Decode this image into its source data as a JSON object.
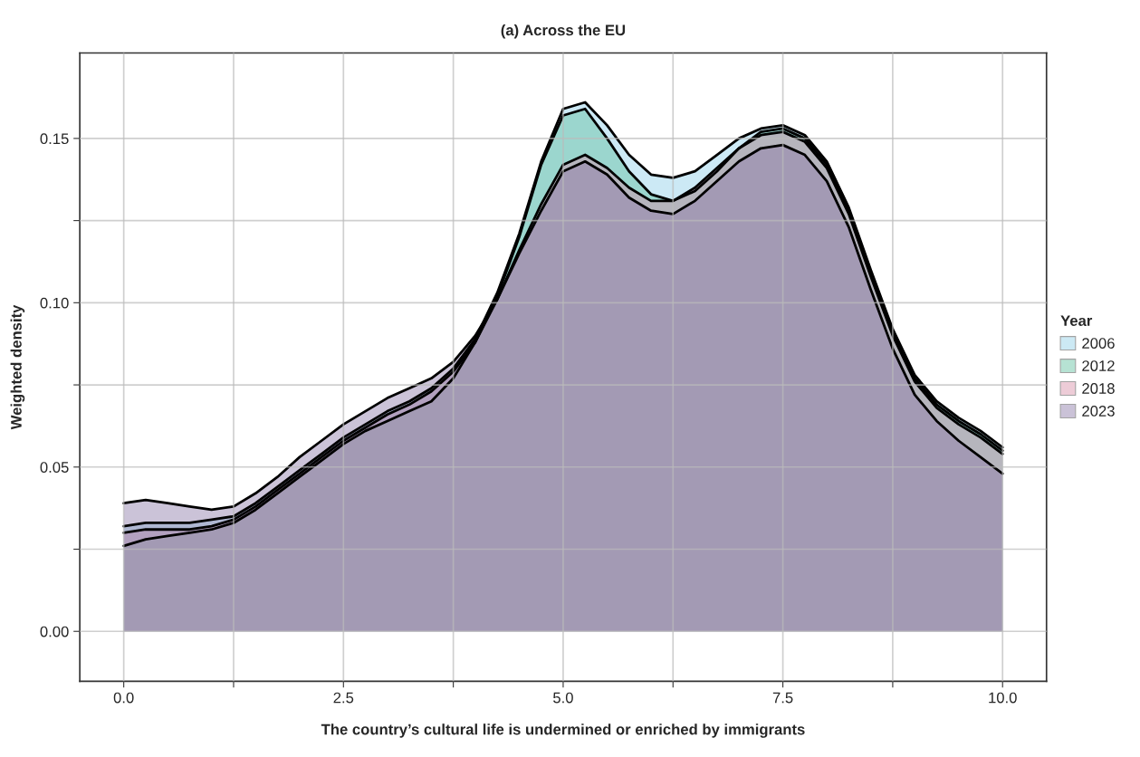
{
  "chart_data": {
    "type": "area",
    "title": "(a) Across the EU",
    "xlabel": "The country’s cultural life is undermined or enriched by immigrants",
    "ylabel": "Weighted density",
    "legend_title": "Year",
    "x": [
      0,
      0.25,
      0.5,
      0.75,
      1,
      1.25,
      1.5,
      1.75,
      2,
      2.25,
      2.5,
      2.75,
      3,
      3.25,
      3.5,
      3.75,
      4,
      4.25,
      4.5,
      4.75,
      5,
      5.25,
      5.5,
      5.75,
      6,
      6.25,
      6.5,
      6.75,
      7,
      7.25,
      7.5,
      7.75,
      8,
      8.25,
      8.5,
      8.75,
      9,
      9.25,
      9.5,
      9.75,
      10
    ],
    "series": [
      {
        "name": "2006",
        "color": "#8fcfe8",
        "values": [
          0.032,
          0.033,
          0.033,
          0.033,
          0.034,
          0.035,
          0.039,
          0.044,
          0.049,
          0.054,
          0.059,
          0.063,
          0.067,
          0.07,
          0.074,
          0.08,
          0.089,
          0.103,
          0.121,
          0.143,
          0.159,
          0.161,
          0.154,
          0.145,
          0.139,
          0.138,
          0.14,
          0.145,
          0.15,
          0.153,
          0.154,
          0.151,
          0.143,
          0.129,
          0.11,
          0.092,
          0.078,
          0.07,
          0.065,
          0.061,
          0.056
        ]
      },
      {
        "name": "2012",
        "color": "#5fbf9f",
        "values": [
          0.026,
          0.028,
          0.029,
          0.03,
          0.031,
          0.033,
          0.037,
          0.042,
          0.047,
          0.052,
          0.057,
          0.061,
          0.064,
          0.067,
          0.07,
          0.077,
          0.088,
          0.102,
          0.12,
          0.142,
          0.157,
          0.159,
          0.15,
          0.14,
          0.133,
          0.131,
          0.134,
          0.14,
          0.147,
          0.152,
          0.153,
          0.15,
          0.142,
          0.128,
          0.109,
          0.091,
          0.077,
          0.069,
          0.064,
          0.06,
          0.055
        ]
      },
      {
        "name": "2018",
        "color": "#d88fa8",
        "values": [
          0.03,
          0.031,
          0.031,
          0.031,
          0.032,
          0.034,
          0.038,
          0.043,
          0.048,
          0.053,
          0.058,
          0.062,
          0.066,
          0.069,
          0.073,
          0.079,
          0.088,
          0.101,
          0.116,
          0.13,
          0.142,
          0.145,
          0.141,
          0.135,
          0.131,
          0.131,
          0.135,
          0.141,
          0.147,
          0.151,
          0.152,
          0.149,
          0.141,
          0.127,
          0.108,
          0.09,
          0.076,
          0.068,
          0.063,
          0.059,
          0.054
        ]
      },
      {
        "name": "2023",
        "color": "#8b7aa8",
        "values": [
          0.039,
          0.04,
          0.039,
          0.038,
          0.037,
          0.038,
          0.042,
          0.047,
          0.053,
          0.058,
          0.063,
          0.067,
          0.071,
          0.074,
          0.077,
          0.082,
          0.09,
          0.101,
          0.115,
          0.128,
          0.14,
          0.143,
          0.139,
          0.132,
          0.128,
          0.127,
          0.131,
          0.137,
          0.143,
          0.147,
          0.148,
          0.145,
          0.137,
          0.123,
          0.104,
          0.086,
          0.072,
          0.064,
          0.058,
          0.053,
          0.048
        ]
      }
    ],
    "xlim": [
      -0.5,
      10.5
    ],
    "ylim": [
      -0.0152,
      0.176
    ],
    "xticks": [
      {
        "value": 0,
        "label": "0.0"
      },
      {
        "value": 1.25,
        "label": null
      },
      {
        "value": 2.5,
        "label": "2.5"
      },
      {
        "value": 3.75,
        "label": null
      },
      {
        "value": 5,
        "label": "5.0"
      },
      {
        "value": 6.25,
        "label": null
      },
      {
        "value": 7.5,
        "label": "7.5"
      },
      {
        "value": 8.75,
        "label": null
      },
      {
        "value": 10,
        "label": "10.0"
      }
    ],
    "yticks": [
      {
        "value": 0,
        "label": "0.00"
      },
      {
        "value": 0.025,
        "label": null
      },
      {
        "value": 0.05,
        "label": "0.05"
      },
      {
        "value": 0.075,
        "label": null
      },
      {
        "value": 0.1,
        "label": "0.10"
      },
      {
        "value": 0.125,
        "label": null
      },
      {
        "value": 0.15,
        "label": "0.15"
      }
    ],
    "grid": true,
    "legend": "right"
  }
}
